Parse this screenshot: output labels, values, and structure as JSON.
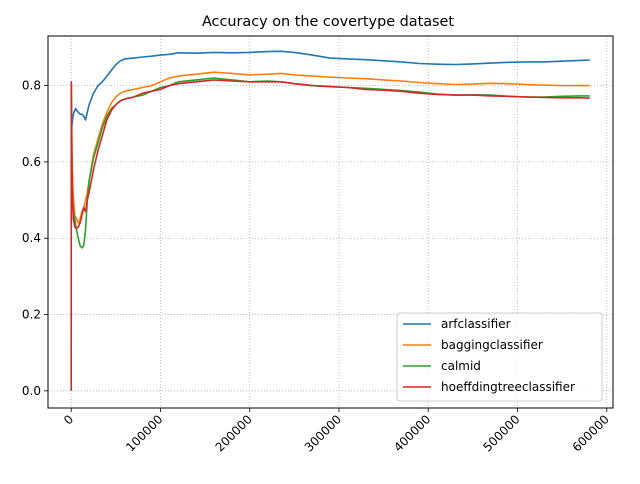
{
  "chart_data": {
    "type": "line",
    "title": "Accuracy on the covertype dataset",
    "xlabel": "",
    "ylabel": "",
    "xlim": [
      -26000,
      607000
    ],
    "ylim": [
      -0.045,
      0.93
    ],
    "grid": true,
    "grid_style": "dotted",
    "legend_position": "lower right",
    "x_ticks": [
      0,
      100000,
      200000,
      300000,
      400000,
      500000,
      600000
    ],
    "x_tick_labels": [
      "0",
      "100000",
      "200000",
      "300000",
      "400000",
      "500000",
      "600000"
    ],
    "x_tick_rotation": 45,
    "y_ticks": [
      0.0,
      0.2,
      0.4,
      0.6,
      0.8
    ],
    "y_tick_labels": [
      "0.0",
      "0.2",
      "0.4",
      "0.6",
      "0.8"
    ],
    "series": [
      {
        "name": "arfclassifier",
        "color": "#1f77b4",
        "x": [
          100,
          1000,
          2000,
          3000,
          4000,
          5000,
          6000,
          8000,
          10000,
          12000,
          14000,
          16000,
          18000,
          20000,
          25000,
          30000,
          35000,
          40000,
          45000,
          50000,
          55000,
          60000,
          70000,
          80000,
          90000,
          100000,
          110000,
          120000,
          140000,
          160000,
          180000,
          200000,
          220000,
          235000,
          250000,
          270000,
          290000,
          310000,
          330000,
          350000,
          370000,
          390000,
          410000,
          430000,
          450000,
          470000,
          490000,
          510000,
          530000,
          550000,
          570000,
          581000
        ],
        "y": [
          0.68,
          0.7,
          0.72,
          0.73,
          0.735,
          0.74,
          0.735,
          0.73,
          0.725,
          0.725,
          0.72,
          0.71,
          0.73,
          0.75,
          0.78,
          0.8,
          0.81,
          0.825,
          0.84,
          0.855,
          0.865,
          0.87,
          0.872,
          0.875,
          0.877,
          0.88,
          0.882,
          0.886,
          0.885,
          0.887,
          0.886,
          0.887,
          0.889,
          0.89,
          0.887,
          0.88,
          0.872,
          0.87,
          0.868,
          0.865,
          0.862,
          0.858,
          0.856,
          0.855,
          0.857,
          0.859,
          0.861,
          0.862,
          0.862,
          0.864,
          0.866,
          0.867
        ]
      },
      {
        "name": "baggingclassifier",
        "color": "#ff7f0e",
        "x": [
          100,
          500,
          1000,
          2000,
          4000,
          6000,
          8000,
          10000,
          12000,
          14000,
          16000,
          18000,
          20000,
          25000,
          30000,
          35000,
          40000,
          45000,
          50000,
          55000,
          60000,
          70000,
          80000,
          90000,
          100000,
          110000,
          120000,
          140000,
          160000,
          180000,
          200000,
          220000,
          235000,
          250000,
          270000,
          290000,
          310000,
          330000,
          350000,
          370000,
          390000,
          410000,
          430000,
          450000,
          470000,
          490000,
          510000,
          530000,
          550000,
          570000,
          581000
        ],
        "y": [
          0.81,
          0.7,
          0.62,
          0.52,
          0.46,
          0.45,
          0.44,
          0.45,
          0.47,
          0.48,
          0.5,
          0.52,
          0.55,
          0.62,
          0.66,
          0.7,
          0.73,
          0.755,
          0.77,
          0.78,
          0.785,
          0.79,
          0.795,
          0.8,
          0.81,
          0.82,
          0.825,
          0.83,
          0.835,
          0.832,
          0.828,
          0.83,
          0.832,
          0.828,
          0.825,
          0.822,
          0.82,
          0.818,
          0.815,
          0.812,
          0.808,
          0.805,
          0.803,
          0.804,
          0.806,
          0.805,
          0.803,
          0.801,
          0.8,
          0.8,
          0.8
        ]
      },
      {
        "name": "calmid",
        "color": "#2ca02c",
        "x": [
          100,
          500,
          1000,
          2000,
          4000,
          6000,
          8000,
          10000,
          12000,
          14000,
          16000,
          18000,
          20000,
          25000,
          30000,
          35000,
          40000,
          45000,
          50000,
          55000,
          60000,
          70000,
          80000,
          90000,
          100000,
          110000,
          120000,
          140000,
          160000,
          180000,
          200000,
          220000,
          235000,
          250000,
          270000,
          290000,
          310000,
          330000,
          350000,
          370000,
          390000,
          410000,
          430000,
          450000,
          470000,
          490000,
          510000,
          530000,
          550000,
          570000,
          581000
        ],
        "y": [
          0.8,
          0.65,
          0.55,
          0.48,
          0.45,
          0.42,
          0.4,
          0.38,
          0.375,
          0.38,
          0.42,
          0.5,
          0.55,
          0.61,
          0.65,
          0.69,
          0.72,
          0.74,
          0.75,
          0.76,
          0.765,
          0.77,
          0.775,
          0.785,
          0.795,
          0.8,
          0.81,
          0.815,
          0.82,
          0.815,
          0.81,
          0.812,
          0.81,
          0.805,
          0.8,
          0.798,
          0.795,
          0.793,
          0.79,
          0.787,
          0.783,
          0.778,
          0.775,
          0.776,
          0.775,
          0.772,
          0.77,
          0.77,
          0.772,
          0.773,
          0.773
        ]
      },
      {
        "name": "hoeffdingtreeclassifier",
        "color": "#d62728",
        "x": [
          0,
          100,
          300,
          800,
          1500,
          2500,
          4000,
          6000,
          8000,
          10000,
          12000,
          14000,
          16000,
          18000,
          20000,
          25000,
          30000,
          35000,
          40000,
          45000,
          50000,
          55000,
          60000,
          70000,
          80000,
          90000,
          100000,
          110000,
          120000,
          140000,
          160000,
          180000,
          200000,
          220000,
          235000,
          250000,
          270000,
          290000,
          310000,
          330000,
          350000,
          370000,
          390000,
          410000,
          430000,
          450000,
          470000,
          490000,
          510000,
          530000,
          550000,
          570000,
          581000
        ],
        "y": [
          0.0,
          0.81,
          0.7,
          0.58,
          0.5,
          0.45,
          0.43,
          0.425,
          0.43,
          0.44,
          0.46,
          0.48,
          0.47,
          0.5,
          0.52,
          0.58,
          0.63,
          0.67,
          0.71,
          0.735,
          0.75,
          0.76,
          0.765,
          0.77,
          0.78,
          0.785,
          0.79,
          0.8,
          0.805,
          0.81,
          0.815,
          0.812,
          0.81,
          0.81,
          0.81,
          0.805,
          0.8,
          0.797,
          0.795,
          0.79,
          0.788,
          0.785,
          0.78,
          0.777,
          0.775,
          0.775,
          0.773,
          0.772,
          0.77,
          0.769,
          0.768,
          0.768,
          0.767
        ]
      }
    ]
  }
}
